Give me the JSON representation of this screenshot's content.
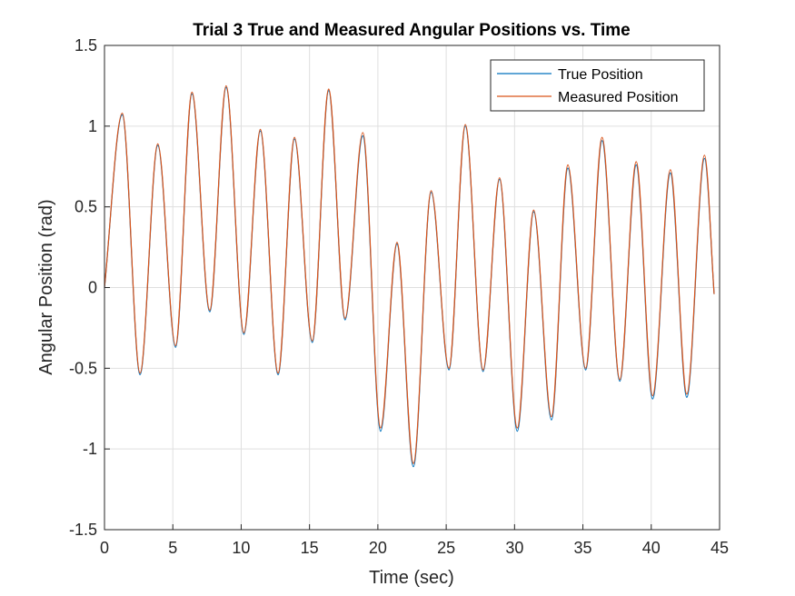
{
  "chart_data": {
    "type": "line",
    "title": "Trial 3 True and Measured Angular Positions vs. Time",
    "xlabel": "Time (sec)",
    "ylabel": "Angular Position (rad)",
    "xlim": [
      0,
      45
    ],
    "ylim": [
      -1.5,
      1.5
    ],
    "xticks": [
      "0",
      "5",
      "10",
      "15",
      "20",
      "25",
      "30",
      "35",
      "40",
      "45"
    ],
    "yticks": [
      "-1.5",
      "-1",
      "-0.5",
      "0",
      "0.5",
      "1",
      "1.5"
    ],
    "grid": true,
    "legend_position": "top-right",
    "series": [
      {
        "name": "True Position",
        "color": "#0072BD",
        "points": [
          [
            0.0,
            0.0
          ],
          [
            1.3,
            1.07
          ],
          [
            2.6,
            -0.54
          ],
          [
            3.9,
            0.88
          ],
          [
            5.2,
            -0.37
          ],
          [
            6.4,
            1.2
          ],
          [
            7.7,
            -0.15
          ],
          [
            8.9,
            1.24
          ],
          [
            10.2,
            -0.29
          ],
          [
            11.4,
            0.97
          ],
          [
            12.7,
            -0.54
          ],
          [
            13.9,
            0.92
          ],
          [
            15.2,
            -0.34
          ],
          [
            16.4,
            1.22
          ],
          [
            17.6,
            -0.2
          ],
          [
            18.9,
            0.94
          ],
          [
            20.2,
            -0.89
          ],
          [
            21.4,
            0.27
          ],
          [
            22.6,
            -1.11
          ],
          [
            23.9,
            0.59
          ],
          [
            25.2,
            -0.51
          ],
          [
            26.4,
            1.0
          ],
          [
            27.7,
            -0.52
          ],
          [
            28.9,
            0.67
          ],
          [
            30.2,
            -0.89
          ],
          [
            31.4,
            0.47
          ],
          [
            32.7,
            -0.82
          ],
          [
            33.9,
            0.74
          ],
          [
            35.2,
            -0.51
          ],
          [
            36.4,
            0.91
          ],
          [
            37.7,
            -0.58
          ],
          [
            38.9,
            0.76
          ],
          [
            40.1,
            -0.69
          ],
          [
            41.4,
            0.71
          ],
          [
            42.6,
            -0.68
          ],
          [
            43.9,
            0.8
          ],
          [
            44.6,
            -0.04
          ]
        ]
      },
      {
        "name": "Measured Position",
        "color": "#D95319",
        "points": [
          [
            0.0,
            0.0
          ],
          [
            1.3,
            1.08
          ],
          [
            2.6,
            -0.53
          ],
          [
            3.9,
            0.89
          ],
          [
            5.2,
            -0.36
          ],
          [
            6.4,
            1.21
          ],
          [
            7.7,
            -0.14
          ],
          [
            8.9,
            1.25
          ],
          [
            10.2,
            -0.28
          ],
          [
            11.4,
            0.98
          ],
          [
            12.7,
            -0.53
          ],
          [
            13.9,
            0.93
          ],
          [
            15.2,
            -0.33
          ],
          [
            16.4,
            1.23
          ],
          [
            17.6,
            -0.19
          ],
          [
            18.9,
            0.96
          ],
          [
            20.2,
            -0.87
          ],
          [
            21.4,
            0.28
          ],
          [
            22.6,
            -1.09
          ],
          [
            23.9,
            0.6
          ],
          [
            25.2,
            -0.5
          ],
          [
            26.4,
            1.01
          ],
          [
            27.7,
            -0.51
          ],
          [
            28.9,
            0.68
          ],
          [
            30.2,
            -0.87
          ],
          [
            31.4,
            0.48
          ],
          [
            32.7,
            -0.8
          ],
          [
            33.9,
            0.76
          ],
          [
            35.2,
            -0.5
          ],
          [
            36.4,
            0.93
          ],
          [
            37.7,
            -0.57
          ],
          [
            38.9,
            0.78
          ],
          [
            40.1,
            -0.67
          ],
          [
            41.4,
            0.73
          ],
          [
            42.6,
            -0.66
          ],
          [
            43.9,
            0.82
          ],
          [
            44.6,
            -0.04
          ]
        ]
      }
    ]
  }
}
